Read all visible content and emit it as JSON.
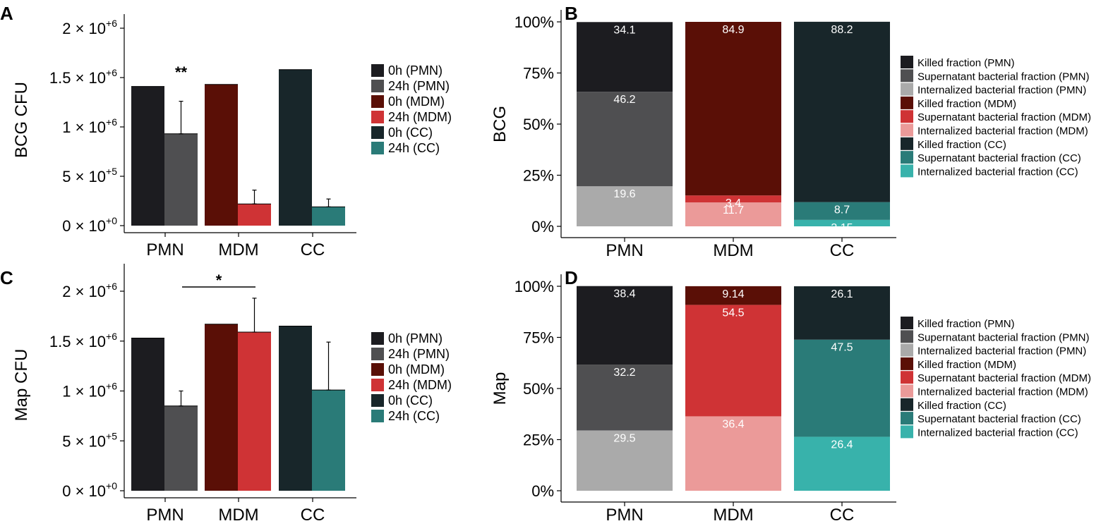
{
  "colors": {
    "pmn_0h": "#1c1c20",
    "pmn_24h": "#4f4f51",
    "pmn_int": "#aaaaaa",
    "mdm_0h": "#5a0f06",
    "mdm_24h": "#cf3335",
    "mdm_int": "#eb9a99",
    "cc_0h": "#18262a",
    "cc_24h": "#2a7b78",
    "cc_int": "#38b2ab"
  },
  "chart_data": [
    {
      "id": "A",
      "type": "bar",
      "panel_letter": "A",
      "ylabel": "BCG CFU",
      "ylim": [
        0,
        2100000
      ],
      "y_ticks": [
        {
          "value": 0,
          "base": "0 × 10",
          "exp": "+0"
        },
        {
          "value": 500000,
          "base": "5 × 10",
          "exp": "+5"
        },
        {
          "value": 1000000,
          "base": "1 × 10",
          "exp": "+6"
        },
        {
          "value": 1500000,
          "base": "1.5 × 10",
          "exp": "+6"
        },
        {
          "value": 2000000,
          "base": "2 × 10",
          "exp": "+6"
        }
      ],
      "categories": [
        "PMN",
        "MDM",
        "CC"
      ],
      "series": [
        {
          "name": "0h",
          "values": [
            1410000,
            1430000,
            1580000
          ],
          "errors": [
            0,
            0,
            0
          ],
          "colors": [
            "#1c1c20",
            "#5a0f06",
            "#18262a"
          ]
        },
        {
          "name": "24h",
          "values": [
            930000,
            220000,
            190000
          ],
          "errors": [
            330000,
            140000,
            80000
          ],
          "colors": [
            "#4f4f51",
            "#cf3335",
            "#2a7b78"
          ]
        }
      ],
      "annotations": [
        {
          "text": "**",
          "category": "PMN",
          "series": "24h"
        }
      ],
      "legend": [
        "0h (PMN)",
        "24h (PMN)",
        "0h (MDM)",
        "24h (MDM)",
        "0h (CC)",
        "24h (CC)"
      ],
      "legend_colors": [
        "#1c1c20",
        "#4f4f51",
        "#5a0f06",
        "#cf3335",
        "#18262a",
        "#2a7b78"
      ]
    },
    {
      "id": "B",
      "type": "bar",
      "stacked": true,
      "panel_letter": "B",
      "ylabel": "BCG",
      "ylim": [
        0,
        100
      ],
      "y_ticks": [
        "0%",
        "25%",
        "50%",
        "75%",
        "100%"
      ],
      "categories": [
        "PMN",
        "MDM",
        "CC"
      ],
      "stacks": [
        {
          "category": "PMN",
          "segments": [
            {
              "name": "Internalized",
              "value": 19.6,
              "label": "19.6",
              "color": "#aaaaaa"
            },
            {
              "name": "Supernatant",
              "value": 46.2,
              "label": "46.2",
              "color": "#4f4f51"
            },
            {
              "name": "Killed",
              "value": 34.1,
              "label": "34.1",
              "color": "#1c1c20"
            }
          ]
        },
        {
          "category": "MDM",
          "segments": [
            {
              "name": "Internalized",
              "value": 11.7,
              "label": "11.7",
              "color": "#eb9a99"
            },
            {
              "name": "Supernatant",
              "value": 3.4,
              "label": "3.4",
              "color": "#cf3335"
            },
            {
              "name": "Killed",
              "value": 84.9,
              "label": "84.9",
              "color": "#5a0f06"
            }
          ]
        },
        {
          "category": "CC",
          "segments": [
            {
              "name": "Internalized",
              "value": 3.15,
              "label": "3.15",
              "color": "#38b2ab"
            },
            {
              "name": "Supernatant",
              "value": 8.7,
              "label": "8.7",
              "color": "#2a7b78"
            },
            {
              "name": "Killed",
              "value": 88.2,
              "label": "88.2",
              "color": "#18262a"
            }
          ]
        }
      ],
      "legend": [
        "Killed fraction (PMN)",
        "Supernatant bacterial fraction (PMN)",
        "Internalized bacterial fraction (PMN)",
        "Killed fraction (MDM)",
        "Supernatant bacterial fraction (MDM)",
        "Internalized bacterial fraction (MDM)",
        "Killed fraction (CC)",
        "Supernatant bacterial fraction (CC)",
        "Internalized bacterial fraction (CC)"
      ],
      "legend_colors": [
        "#1c1c20",
        "#4f4f51",
        "#aaaaaa",
        "#5a0f06",
        "#cf3335",
        "#eb9a99",
        "#18262a",
        "#2a7b78",
        "#38b2ab"
      ]
    },
    {
      "id": "C",
      "type": "bar",
      "panel_letter": "C",
      "ylabel": "Map CFU",
      "ylim": [
        0,
        2100000
      ],
      "y_ticks": [
        {
          "value": 0,
          "base": "0 × 10",
          "exp": "+0"
        },
        {
          "value": 500000,
          "base": "5 × 10",
          "exp": "+5"
        },
        {
          "value": 1000000,
          "base": "1 × 10",
          "exp": "+6"
        },
        {
          "value": 1500000,
          "base": "1.5 × 10",
          "exp": "+6"
        },
        {
          "value": 2000000,
          "base": "2 × 10",
          "exp": "+6"
        }
      ],
      "categories": [
        "PMN",
        "MDM",
        "CC"
      ],
      "series": [
        {
          "name": "0h",
          "values": [
            1530000,
            1670000,
            1650000
          ],
          "errors": [
            0,
            0,
            0
          ],
          "colors": [
            "#1c1c20",
            "#5a0f06",
            "#18262a"
          ]
        },
        {
          "name": "24h",
          "values": [
            850000,
            1590000,
            1010000
          ],
          "errors": [
            150000,
            340000,
            480000
          ],
          "colors": [
            "#4f4f51",
            "#cf3335",
            "#2a7b78"
          ]
        }
      ],
      "annotations": [
        {
          "text": "*",
          "from": "PMN",
          "to": "MDM",
          "bracket": true
        }
      ],
      "legend": [
        "0h (PMN)",
        "24h (PMN)",
        "0h (MDM)",
        "24h (MDM)",
        "0h (CC)",
        "24h (CC)"
      ],
      "legend_colors": [
        "#1c1c20",
        "#4f4f51",
        "#5a0f06",
        "#cf3335",
        "#18262a",
        "#2a7b78"
      ]
    },
    {
      "id": "D",
      "type": "bar",
      "stacked": true,
      "panel_letter": "D",
      "ylabel": "Map",
      "ylim": [
        0,
        100
      ],
      "y_ticks": [
        "0%",
        "25%",
        "50%",
        "75%",
        "100%"
      ],
      "categories": [
        "PMN",
        "MDM",
        "CC"
      ],
      "stacks": [
        {
          "category": "PMN",
          "segments": [
            {
              "name": "Internalized",
              "value": 29.5,
              "label": "29.5",
              "color": "#aaaaaa"
            },
            {
              "name": "Supernatant",
              "value": 32.2,
              "label": "32.2",
              "color": "#4f4f51"
            },
            {
              "name": "Killed",
              "value": 38.4,
              "label": "38.4",
              "color": "#1c1c20"
            }
          ]
        },
        {
          "category": "MDM",
          "segments": [
            {
              "name": "Internalized",
              "value": 36.4,
              "label": "36.4",
              "color": "#eb9a99"
            },
            {
              "name": "Supernatant",
              "value": 54.5,
              "label": "54.5",
              "color": "#cf3335"
            },
            {
              "name": "Killed",
              "value": 9.14,
              "label": "9.14",
              "color": "#5a0f06"
            }
          ]
        },
        {
          "category": "CC",
          "segments": [
            {
              "name": "Internalized",
              "value": 26.4,
              "label": "26.4",
              "color": "#38b2ab"
            },
            {
              "name": "Supernatant",
              "value": 47.5,
              "label": "47.5",
              "color": "#2a7b78"
            },
            {
              "name": "Killed",
              "value": 26.1,
              "label": "26.1",
              "color": "#18262a"
            }
          ]
        }
      ],
      "legend": [
        "Killed fraction (PMN)",
        "Supernatant bacterial fraction (PMN)",
        "Internalized bacterial fraction (PMN)",
        "Killed fraction (MDM)",
        "Supernatant bacterial fraction (MDM)",
        "Internalized bacterial fraction (MDM)",
        "Killed fraction (CC)",
        "Supernatant bacterial fraction (CC)",
        "Internalized bacterial fraction (CC)"
      ],
      "legend_colors": [
        "#1c1c20",
        "#4f4f51",
        "#aaaaaa",
        "#5a0f06",
        "#cf3335",
        "#eb9a99",
        "#18262a",
        "#2a7b78",
        "#38b2ab"
      ]
    }
  ]
}
